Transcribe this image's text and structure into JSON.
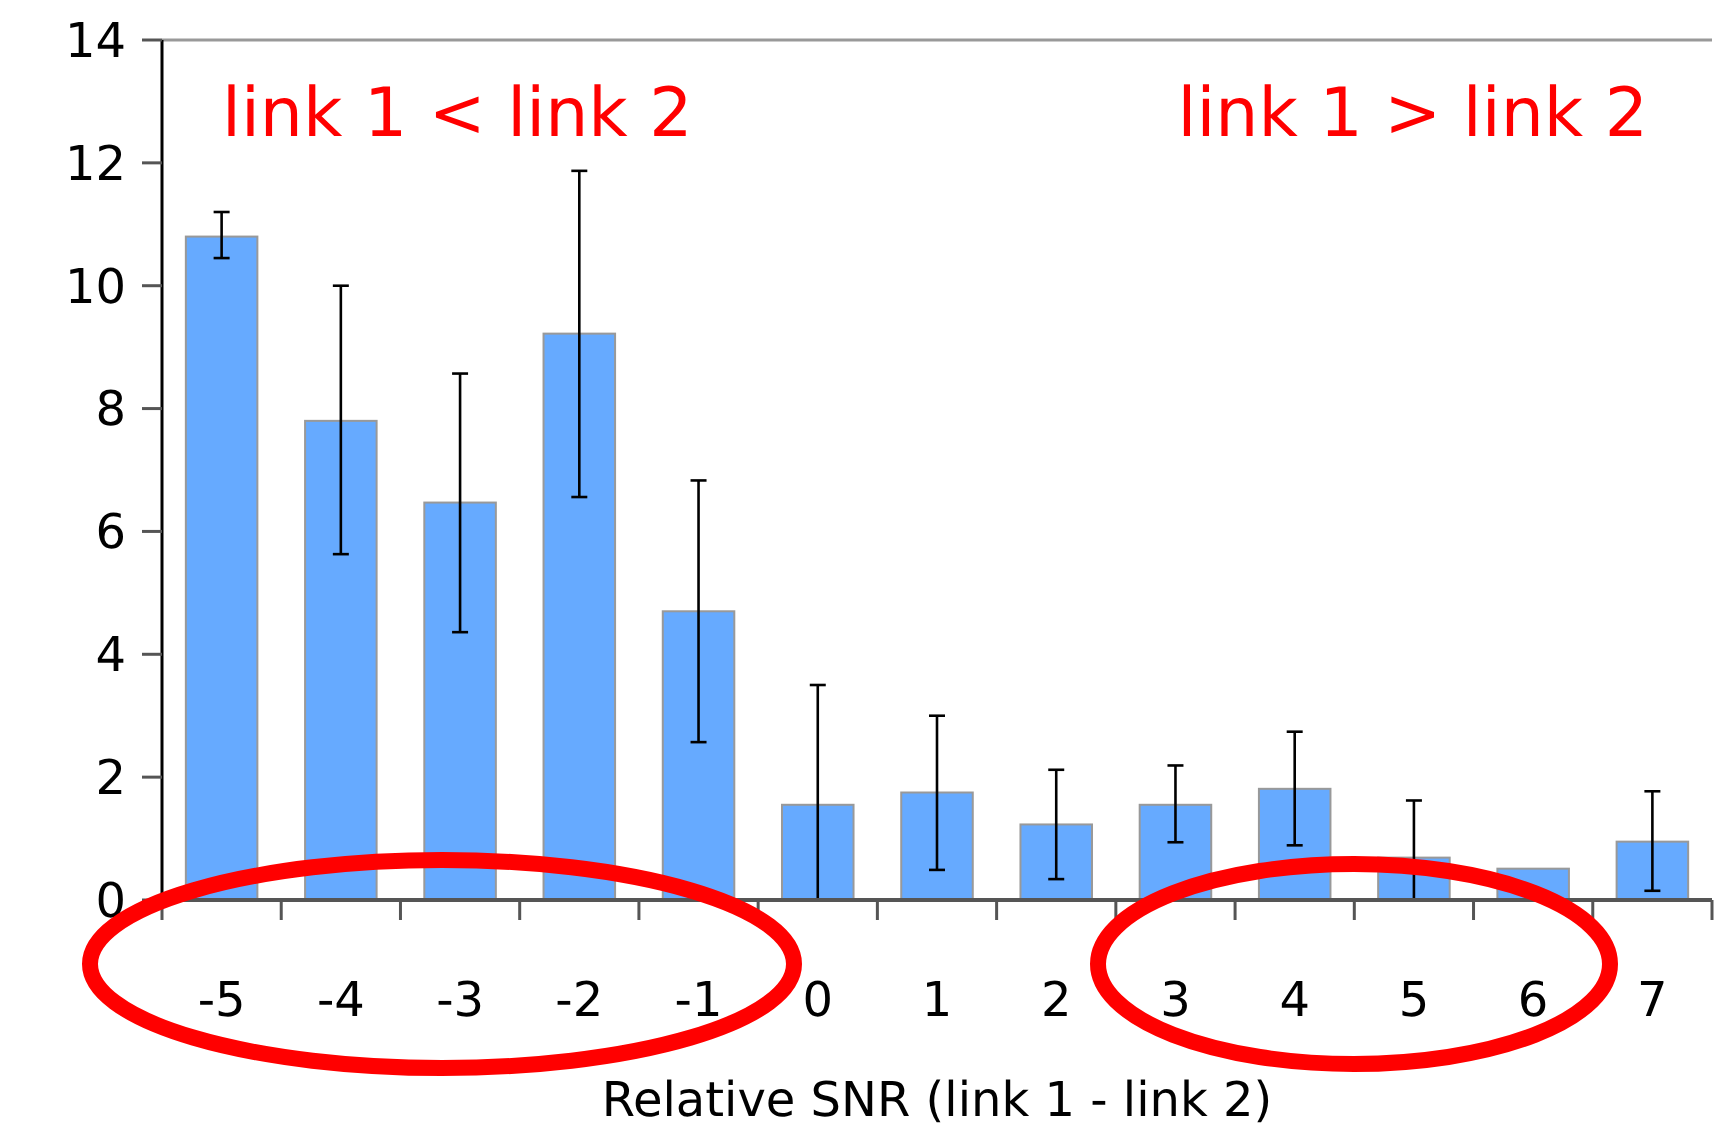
{
  "chart_data": {
    "type": "bar",
    "xlabel": "Relative SNR (link 1 - link 2)",
    "categories": [
      "-5",
      "-4",
      "-3",
      "-2",
      "-1",
      "0",
      "1",
      "2",
      "3",
      "4",
      "5",
      "6",
      "7"
    ],
    "values": [
      10.8,
      7.8,
      6.47,
      9.22,
      4.7,
      1.55,
      1.75,
      1.23,
      1.55,
      1.81,
      0.69,
      0.51,
      0.95
    ],
    "errors": [
      [
        10.45,
        11.2
      ],
      [
        5.63,
        10.0
      ],
      [
        4.36,
        8.57
      ],
      [
        6.56,
        11.87
      ],
      [
        2.57,
        6.83
      ],
      [
        0,
        3.5
      ],
      [
        0.49,
        3.0
      ],
      [
        0.34,
        2.12
      ],
      [
        0.94,
        2.19
      ],
      [
        0.89,
        2.74
      ],
      [
        0,
        1.62
      ],
      null,
      [
        0.15,
        1.77
      ]
    ],
    "color": "#66aaff",
    "ylim": [
      0,
      14
    ],
    "yticks": [
      0,
      2,
      4,
      6,
      8,
      10,
      12,
      14
    ],
    "grid": false,
    "annotations": [
      "link 1 < link 2",
      "link 1 > link 2"
    ]
  }
}
